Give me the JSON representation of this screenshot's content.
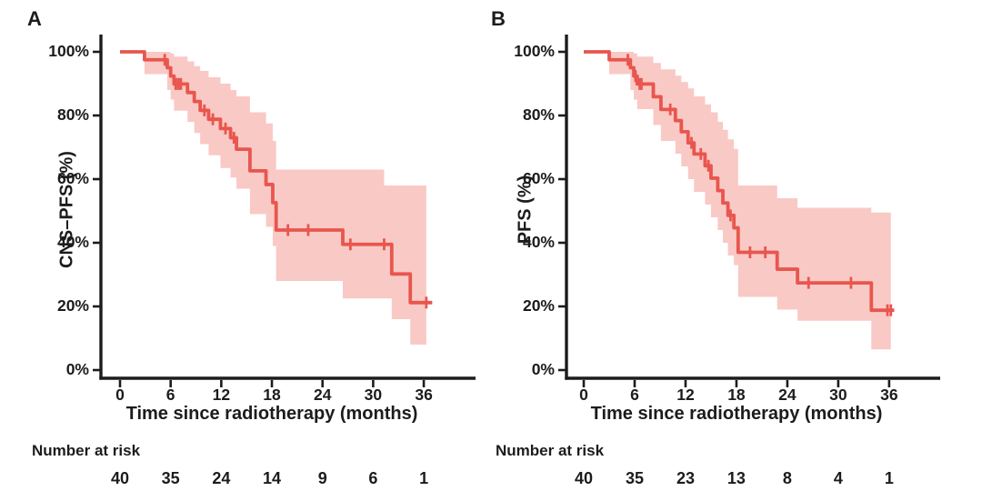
{
  "colors": {
    "line": "#e8564e",
    "band": "#f9c9c5",
    "axis": "#1c1c1c",
    "text": "#1c1c1c",
    "background": "#ffffff"
  },
  "chart_data": [
    {
      "type": "line",
      "subtype": "kaplan-meier-step-with-ci",
      "title": "A",
      "ylabel": "CNS–PFS (%)",
      "xlabel": "Time since radiotherapy (months)",
      "x_ticks": [
        0,
        6,
        12,
        18,
        24,
        30,
        36
      ],
      "y_ticks_pct": [
        0,
        20,
        40,
        60,
        80,
        100
      ],
      "y_tick_suffix": "%",
      "xlim": [
        0,
        39
      ],
      "ylim": [
        0,
        100
      ],
      "grid": false,
      "legend": "none",
      "series": [
        {
          "name": "CNS-PFS",
          "steps": [
            [
              0,
              100
            ],
            [
              2.9,
              97.5
            ],
            [
              5.6,
              95.0
            ],
            [
              6.0,
              92.4
            ],
            [
              6.4,
              89.9
            ],
            [
              8.0,
              87.2
            ],
            [
              8.8,
              84.4
            ],
            [
              9.5,
              81.6
            ],
            [
              10.5,
              78.8
            ],
            [
              11.9,
              75.9
            ],
            [
              13.1,
              73.0
            ],
            [
              13.8,
              69.4
            ],
            [
              15.4,
              62.6
            ],
            [
              17.3,
              58.3
            ],
            [
              18.1,
              52.6
            ],
            [
              18.5,
              44.0
            ],
            [
              26.4,
              39.5
            ],
            [
              32.2,
              30.2
            ],
            [
              34.4,
              21.2
            ]
          ],
          "end_t": 37.0
        }
      ],
      "censor_marks": [
        [
          5.3,
          97.5
        ],
        [
          6.6,
          89.9
        ],
        [
          6.9,
          89.9
        ],
        [
          7.2,
          89.9
        ],
        [
          10.0,
          81.6
        ],
        [
          11.0,
          78.8
        ],
        [
          12.5,
          75.9
        ],
        [
          13.5,
          73.0
        ],
        [
          19.9,
          44.0
        ],
        [
          22.3,
          44.0
        ],
        [
          27.3,
          39.5
        ],
        [
          31.3,
          39.5
        ],
        [
          36.3,
          21.2
        ]
      ],
      "confidence_band": {
        "steps": [
          [
            2.9,
            93,
            100
          ],
          [
            5.6,
            88,
            100
          ],
          [
            6.0,
            85,
            99.5
          ],
          [
            6.4,
            81.5,
            98.5
          ],
          [
            8.0,
            78,
            97
          ],
          [
            8.8,
            74.5,
            95.5
          ],
          [
            9.5,
            71,
            94
          ],
          [
            10.5,
            67.5,
            92
          ],
          [
            11.9,
            63.5,
            90
          ],
          [
            13.1,
            60.5,
            88
          ],
          [
            13.8,
            57,
            86
          ],
          [
            15.4,
            49,
            81
          ],
          [
            17.3,
            45,
            77.5
          ],
          [
            18.1,
            39,
            72
          ],
          [
            18.5,
            28,
            63
          ],
          [
            26.4,
            22.5,
            63
          ],
          [
            31.3,
            22.5,
            58
          ],
          [
            32.2,
            16,
            58
          ],
          [
            34.4,
            8,
            58
          ]
        ],
        "end_t": 36.3
      },
      "risk": {
        "label": "Number at risk",
        "times": [
          0,
          6,
          12,
          18,
          24,
          30,
          36
        ],
        "counts": [
          40,
          35,
          24,
          14,
          9,
          6,
          1
        ]
      }
    },
    {
      "type": "line",
      "subtype": "kaplan-meier-step-with-ci",
      "title": "B",
      "ylabel": "PFS (%)",
      "xlabel": "Time since radiotherapy (months)",
      "x_ticks": [
        0,
        6,
        12,
        18,
        24,
        30,
        36
      ],
      "y_ticks_pct": [
        0,
        20,
        40,
        60,
        80,
        100
      ],
      "y_tick_suffix": "%",
      "xlim": [
        0,
        39
      ],
      "ylim": [
        0,
        100
      ],
      "grid": false,
      "legend": "none",
      "series": [
        {
          "name": "PFS",
          "steps": [
            [
              0,
              100
            ],
            [
              3.0,
              97.5
            ],
            [
              5.5,
              95.0
            ],
            [
              5.9,
              92.4
            ],
            [
              6.3,
              89.9
            ],
            [
              8.2,
              85.9
            ],
            [
              9.1,
              81.9
            ],
            [
              10.8,
              78.4
            ],
            [
              11.5,
              74.9
            ],
            [
              12.3,
              71.4
            ],
            [
              13.0,
              67.9
            ],
            [
              14.3,
              64.2
            ],
            [
              15.0,
              60.3
            ],
            [
              15.8,
              56.4
            ],
            [
              16.4,
              52.5
            ],
            [
              17.0,
              48.6
            ],
            [
              17.7,
              44.7
            ],
            [
              18.2,
              37.0
            ],
            [
              22.8,
              31.7
            ],
            [
              25.2,
              27.4
            ],
            [
              33.9,
              18.8
            ]
          ],
          "end_t": 36.6
        }
      ],
      "censor_marks": [
        [
          5.2,
          97.5
        ],
        [
          6.1,
          92.4
        ],
        [
          6.6,
          89.9
        ],
        [
          6.8,
          89.9
        ],
        [
          10.2,
          81.9
        ],
        [
          12.7,
          71.4
        ],
        [
          13.8,
          67.9
        ],
        [
          14.7,
          64.2
        ],
        [
          17.3,
          48.6
        ],
        [
          19.6,
          37.0
        ],
        [
          21.4,
          37.0
        ],
        [
          26.5,
          27.4
        ],
        [
          31.5,
          27.4
        ],
        [
          35.8,
          18.8
        ],
        [
          36.2,
          18.8
        ]
      ],
      "confidence_band": {
        "steps": [
          [
            3.0,
            93,
            100
          ],
          [
            5.5,
            88,
            100
          ],
          [
            5.9,
            85,
            99.5
          ],
          [
            6.3,
            82,
            98.5
          ],
          [
            8.2,
            77,
            96.5
          ],
          [
            9.1,
            72,
            94.5
          ],
          [
            10.8,
            68,
            92.5
          ],
          [
            11.5,
            64,
            90.5
          ],
          [
            12.3,
            60,
            88.5
          ],
          [
            13.0,
            56,
            86
          ],
          [
            14.3,
            52,
            83.5
          ],
          [
            15.0,
            48,
            81
          ],
          [
            15.8,
            44,
            78
          ],
          [
            16.4,
            40,
            75.5
          ],
          [
            17.0,
            36,
            72.5
          ],
          [
            17.7,
            33,
            69.5
          ],
          [
            18.2,
            23,
            58
          ],
          [
            22.8,
            19,
            54
          ],
          [
            25.2,
            15.5,
            51
          ],
          [
            33.9,
            6.5,
            49.5
          ]
        ],
        "end_t": 36.2
      },
      "risk": {
        "label": "Number at risk",
        "times": [
          0,
          6,
          12,
          18,
          24,
          30,
          36
        ],
        "counts": [
          40,
          35,
          23,
          13,
          8,
          4,
          1
        ]
      }
    }
  ]
}
